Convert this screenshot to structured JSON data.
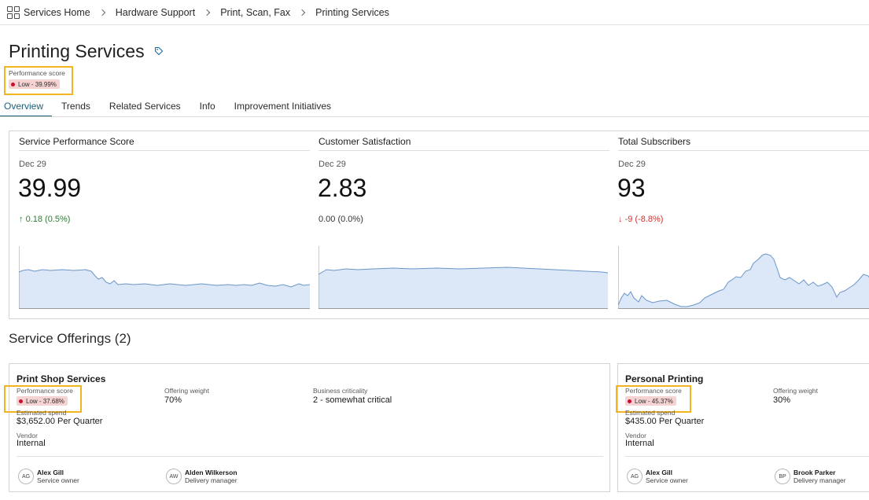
{
  "breadcrumb": [
    "Services Home",
    "Hardware Support",
    "Print, Scan, Fax",
    "Printing Services"
  ],
  "page": {
    "title": "Printing Services",
    "score_label": "Performance score",
    "score_badge": "Low - 39.99%"
  },
  "tabs": [
    "Overview",
    "Trends",
    "Related Services",
    "Info",
    "Improvement Initiatives"
  ],
  "metrics": [
    {
      "title": "Service Performance Score",
      "date": "Dec 29",
      "value": "39.99",
      "delta": "0.18 (0.5%)",
      "trend": "up"
    },
    {
      "title": "Customer Satisfaction",
      "date": "Dec 29",
      "value": "2.83",
      "delta": "0.00 (0.0%)",
      "trend": "flat"
    },
    {
      "title": "Total Subscribers",
      "date": "Dec 29",
      "value": "93",
      "delta": "-9 (-8.8%)",
      "trend": "down"
    }
  ],
  "offerings": {
    "title": "Service Offerings (2)",
    "cards": [
      {
        "title": "Print Shop Services",
        "score_label": "Performance score",
        "score_badge": "Low - 37.68%",
        "weight_label": "Offering weight",
        "weight": "70%",
        "criticality_label": "Business criticality",
        "criticality": "2 - somewhat critical",
        "spend_label": "Estimated spend",
        "spend": "$3,652.00 Per Quarter",
        "vendor_label": "Vendor",
        "vendor": "Internal",
        "people": [
          {
            "initials": "AG",
            "name": "Alex Gill",
            "role": "Service owner"
          },
          {
            "initials": "AW",
            "name": "Alden Wilkerson",
            "role": "Delivery manager"
          }
        ]
      },
      {
        "title": "Personal Printing",
        "score_label": "Performance score",
        "score_badge": "Low - 45.37%",
        "weight_label": "Offering weight",
        "weight": "30%",
        "spend_label": "Estimated spend",
        "spend": "$435.00 Per Quarter",
        "vendor_label": "Vendor",
        "vendor": "Internal",
        "people": [
          {
            "initials": "AG",
            "name": "Alex Gill",
            "role": "Service owner"
          },
          {
            "initials": "BP",
            "name": "Brook Parker",
            "role": "Delivery manager"
          }
        ]
      }
    ]
  },
  "colors": {
    "accent": "#1b5f7a",
    "highlight": "#f2b51f",
    "badge_bg": "#f6d3d3",
    "badge_dot": "#c8102e",
    "up": "#2e7d32",
    "down": "#d0312d",
    "spark_fill": "#dce7f7",
    "spark_line": "#6b96c9"
  },
  "icons": [
    "apps-grid-icon",
    "chevron-right-icon",
    "tag-icon",
    "arrow-up-icon",
    "arrow-down-icon"
  ]
}
